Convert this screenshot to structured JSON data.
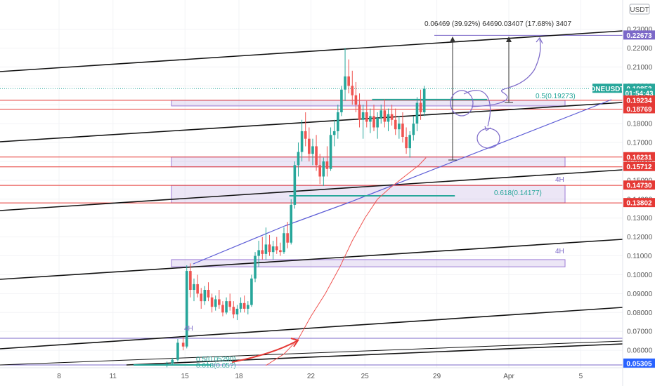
{
  "chart_data": {
    "type": "candlestick",
    "symbol": "ONEUSDT",
    "currency": "USDT",
    "ylim": [
      0.0515,
      0.2395
    ],
    "y_ticks": [
      0.06,
      0.07,
      0.08,
      0.09,
      0.1,
      0.11,
      0.12,
      0.13,
      0.14,
      0.15,
      0.16,
      0.17,
      0.18,
      0.19,
      0.2,
      0.21,
      0.22,
      0.23
    ],
    "y_tick_labels": [
      "0.06000",
      "0.07000",
      "0.08000",
      "0.09000",
      "0.10000",
      "0.11000",
      "0.12000",
      "0.13000",
      "0.14000",
      "0.15000",
      "0.16000",
      "0.17000",
      "0.18000",
      "0.19000",
      "0.20000",
      "0.21000",
      "0.22000",
      "0.23000"
    ],
    "x_ticks": [
      {
        "day": 8,
        "label": "8"
      },
      {
        "day": 11,
        "label": "11"
      },
      {
        "day": 15,
        "label": "15"
      },
      {
        "day": 18,
        "label": "18"
      },
      {
        "day": 22,
        "label": "22"
      },
      {
        "day": 25,
        "label": "25"
      },
      {
        "day": 29,
        "label": "29"
      },
      {
        "day": 33,
        "label": "Apr"
      },
      {
        "day": 37,
        "label": "5"
      }
    ],
    "xlim": [
      6,
      40
    ],
    "price_tags": [
      {
        "value": 0.22673,
        "label": "0.22673",
        "color": "#7b68c8"
      },
      {
        "value": 0.19853,
        "label": "ONEUSDT",
        "color": "#26a69a",
        "side": "left",
        "align_value": 0.19853
      },
      {
        "value": 0.19853,
        "label": "0.19853",
        "color": "#26a69a"
      },
      {
        "value": 0.196,
        "label": "01:54:43",
        "color": "#26a69a"
      },
      {
        "value": 0.19234,
        "label": "0.19234",
        "color": "#e53935"
      },
      {
        "value": 0.18769,
        "label": "0.18769",
        "color": "#e53935"
      },
      {
        "value": 0.16231,
        "label": "0.16231",
        "color": "#e53935"
      },
      {
        "value": 0.15712,
        "label": "0.15712",
        "color": "#e53935"
      },
      {
        "value": 0.1473,
        "label": "0.14730",
        "color": "#e53935"
      },
      {
        "value": 0.13802,
        "label": "0.13802",
        "color": "#e53935"
      },
      {
        "value": 0.05305,
        "label": "0.05305",
        "color": "#2962ff"
      }
    ],
    "horizontal_levels": [
      0.22673,
      0.19234,
      0.18769,
      0.16231,
      0.15712,
      0.1473,
      0.13802
    ],
    "zones": [
      {
        "from_day": 15.0,
        "to_day": 38.2,
        "y_top": 0.19234,
        "y_bottom": 0.18999
      },
      {
        "from_day": 15.0,
        "to_day": 38.2,
        "y_top": 0.16231,
        "y_bottom": 0.15712
      },
      {
        "from_day": 15.0,
        "to_day": 38.2,
        "y_top": 0.1473,
        "y_bottom": 0.13802
      },
      {
        "from_day": 15.0,
        "to_day": 38.2,
        "y_top": 0.108,
        "y_bottom": 0.1042
      }
    ],
    "fib_levels": [
      {
        "label": "0.5(0.19273)",
        "value": 0.19273,
        "from_day": 25.4,
        "to_day": 31.8
      },
      {
        "label": "0.618(0.14177)",
        "value": 0.14177,
        "from_day": 20.8,
        "to_day": 30.0
      },
      {
        "label": "0.5(0.05290)",
        "value": 0.0529,
        "from_day": 13.0,
        "to_day": 18.6
      },
      {
        "label": "0.618(0.05?)",
        "value": 0.0514,
        "from_day": 13.0,
        "to_day": 18.6
      }
    ],
    "timeframe_labels": [
      "4H",
      "4H",
      "4H"
    ],
    "measure_text": "0.06469 (39.92%) 64690.03407 (17.68%) 3407",
    "candles": [
      [
        14.0,
        0.052,
        0.054,
        0.051,
        0.053
      ],
      [
        14.3,
        0.053,
        0.056,
        0.052,
        0.055
      ],
      [
        14.6,
        0.055,
        0.066,
        0.054,
        0.064
      ],
      [
        14.9,
        0.064,
        0.067,
        0.06,
        0.062
      ],
      [
        15.1,
        0.062,
        0.105,
        0.061,
        0.102
      ],
      [
        15.3,
        0.102,
        0.106,
        0.088,
        0.092
      ],
      [
        15.5,
        0.092,
        0.098,
        0.086,
        0.095
      ],
      [
        15.7,
        0.095,
        0.1,
        0.088,
        0.09
      ],
      [
        15.9,
        0.09,
        0.093,
        0.082,
        0.086
      ],
      [
        16.1,
        0.086,
        0.094,
        0.084,
        0.092
      ],
      [
        16.3,
        0.092,
        0.096,
        0.086,
        0.088
      ],
      [
        16.5,
        0.088,
        0.09,
        0.08,
        0.083
      ],
      [
        16.7,
        0.083,
        0.089,
        0.081,
        0.087
      ],
      [
        16.9,
        0.087,
        0.092,
        0.082,
        0.084
      ],
      [
        17.1,
        0.084,
        0.086,
        0.078,
        0.08
      ],
      [
        17.3,
        0.08,
        0.088,
        0.079,
        0.086
      ],
      [
        17.5,
        0.086,
        0.09,
        0.081,
        0.083
      ],
      [
        17.7,
        0.083,
        0.086,
        0.077,
        0.079
      ],
      [
        17.9,
        0.079,
        0.084,
        0.076,
        0.082
      ],
      [
        18.1,
        0.082,
        0.088,
        0.08,
        0.085
      ],
      [
        18.3,
        0.085,
        0.089,
        0.08,
        0.082
      ],
      [
        18.5,
        0.082,
        0.086,
        0.079,
        0.084
      ],
      [
        18.7,
        0.084,
        0.1,
        0.083,
        0.098
      ],
      [
        18.9,
        0.098,
        0.112,
        0.096,
        0.11
      ],
      [
        19.1,
        0.11,
        0.118,
        0.104,
        0.113
      ],
      [
        19.3,
        0.113,
        0.12,
        0.108,
        0.111
      ],
      [
        19.5,
        0.111,
        0.125,
        0.108,
        0.116
      ],
      [
        19.7,
        0.116,
        0.121,
        0.11,
        0.112
      ],
      [
        19.9,
        0.112,
        0.118,
        0.108,
        0.115
      ],
      [
        20.1,
        0.115,
        0.12,
        0.111,
        0.113
      ],
      [
        20.3,
        0.113,
        0.117,
        0.11,
        0.112
      ],
      [
        20.5,
        0.112,
        0.125,
        0.111,
        0.122
      ],
      [
        20.7,
        0.122,
        0.128,
        0.114,
        0.117
      ],
      [
        20.9,
        0.117,
        0.14,
        0.116,
        0.137
      ],
      [
        21.1,
        0.137,
        0.16,
        0.135,
        0.158
      ],
      [
        21.3,
        0.158,
        0.17,
        0.152,
        0.165
      ],
      [
        21.5,
        0.165,
        0.182,
        0.16,
        0.176
      ],
      [
        21.7,
        0.176,
        0.186,
        0.168,
        0.172
      ],
      [
        21.9,
        0.172,
        0.178,
        0.16,
        0.164
      ],
      [
        22.1,
        0.164,
        0.172,
        0.158,
        0.168
      ],
      [
        22.3,
        0.168,
        0.174,
        0.155,
        0.158
      ],
      [
        22.5,
        0.158,
        0.164,
        0.148,
        0.152
      ],
      [
        22.7,
        0.152,
        0.162,
        0.147,
        0.16
      ],
      [
        22.9,
        0.16,
        0.168,
        0.152,
        0.156
      ],
      [
        23.1,
        0.156,
        0.178,
        0.155,
        0.174
      ],
      [
        23.3,
        0.174,
        0.182,
        0.168,
        0.176
      ],
      [
        23.5,
        0.176,
        0.19,
        0.172,
        0.186
      ],
      [
        23.7,
        0.186,
        0.2,
        0.184,
        0.198
      ],
      [
        23.9,
        0.198,
        0.22,
        0.192,
        0.205
      ],
      [
        24.1,
        0.205,
        0.214,
        0.196,
        0.2
      ],
      [
        24.3,
        0.2,
        0.208,
        0.19,
        0.195
      ],
      [
        24.5,
        0.195,
        0.202,
        0.186,
        0.19
      ],
      [
        24.7,
        0.19,
        0.196,
        0.178,
        0.182
      ],
      [
        24.9,
        0.182,
        0.19,
        0.172,
        0.186
      ],
      [
        25.1,
        0.186,
        0.192,
        0.178,
        0.181
      ],
      [
        25.3,
        0.181,
        0.188,
        0.175,
        0.184
      ],
      [
        25.5,
        0.184,
        0.19,
        0.176,
        0.178
      ],
      [
        25.7,
        0.178,
        0.186,
        0.172,
        0.183
      ],
      [
        25.9,
        0.183,
        0.19,
        0.18,
        0.187
      ],
      [
        26.1,
        0.187,
        0.193,
        0.178,
        0.181
      ],
      [
        26.3,
        0.181,
        0.188,
        0.176,
        0.185
      ],
      [
        26.5,
        0.185,
        0.19,
        0.179,
        0.182
      ],
      [
        26.7,
        0.182,
        0.188,
        0.174,
        0.177
      ],
      [
        26.9,
        0.177,
        0.184,
        0.172,
        0.18
      ],
      [
        27.1,
        0.18,
        0.186,
        0.17,
        0.173
      ],
      [
        27.3,
        0.173,
        0.178,
        0.164,
        0.167
      ],
      [
        27.5,
        0.167,
        0.176,
        0.162,
        0.174
      ],
      [
        27.7,
        0.174,
        0.184,
        0.171,
        0.18
      ],
      [
        27.9,
        0.18,
        0.194,
        0.176,
        0.191
      ],
      [
        28.1,
        0.191,
        0.198,
        0.182,
        0.186
      ],
      [
        28.3,
        0.186,
        0.2,
        0.184,
        0.1985
      ]
    ],
    "ma": [
      [
        19.5,
        0.052
      ],
      [
        20.5,
        0.058
      ],
      [
        21.3,
        0.066
      ],
      [
        22.0,
        0.078
      ],
      [
        22.8,
        0.09
      ],
      [
        23.6,
        0.104
      ],
      [
        24.3,
        0.118
      ],
      [
        25.0,
        0.13
      ],
      [
        25.7,
        0.14
      ],
      [
        26.4,
        0.146
      ],
      [
        27.2,
        0.152
      ],
      [
        28.0,
        0.158
      ],
      [
        28.4,
        0.162
      ]
    ]
  }
}
